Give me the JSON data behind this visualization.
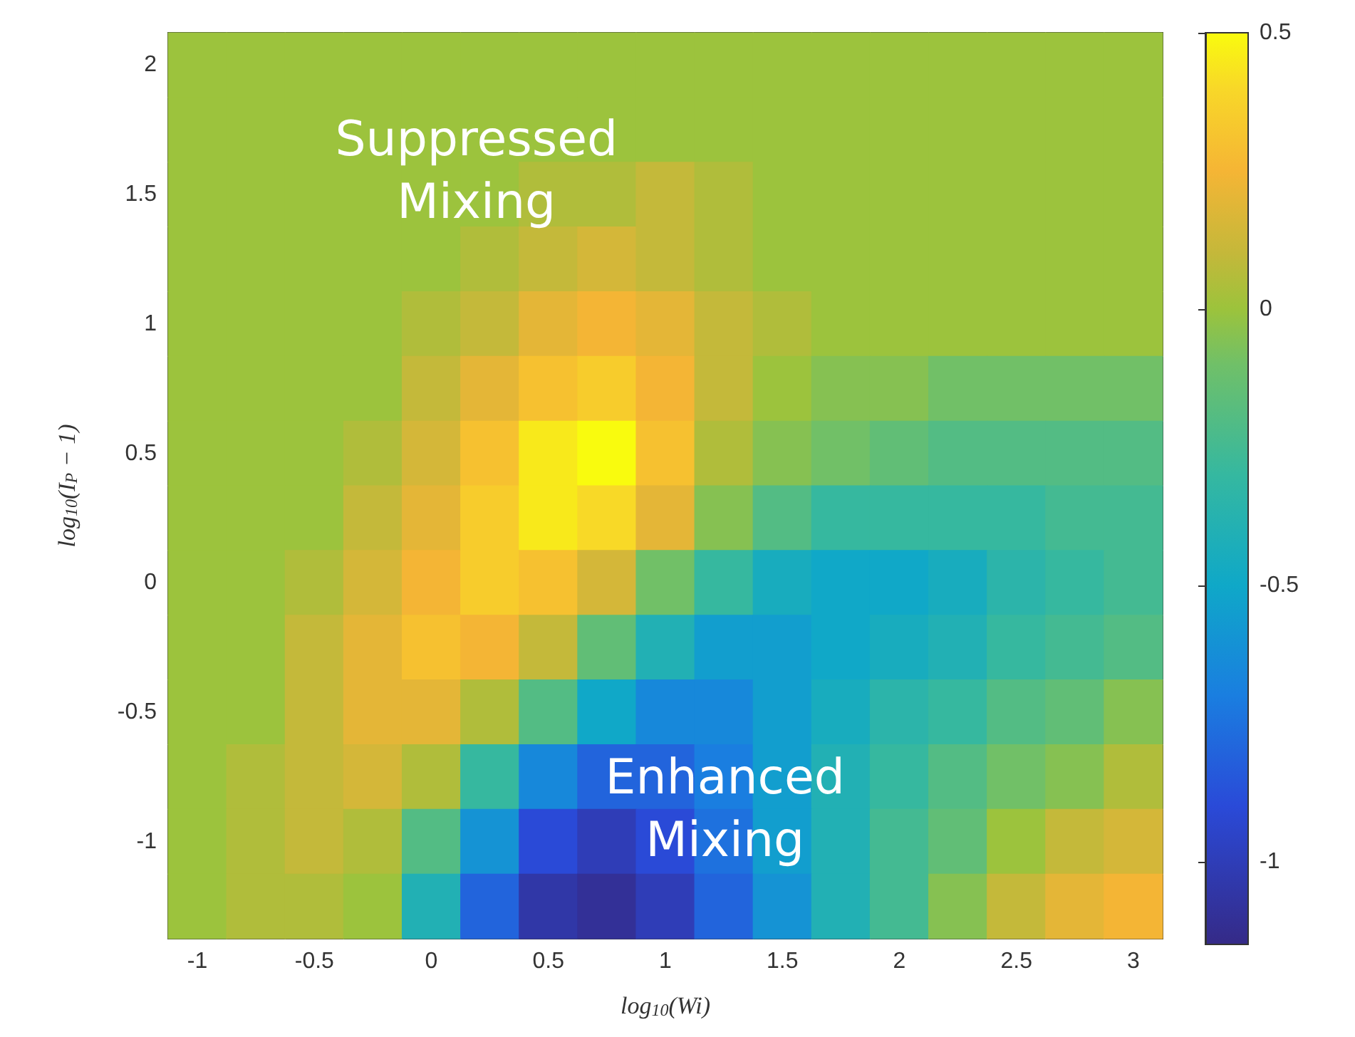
{
  "chart_data": {
    "type": "heatmap",
    "xlabel": "log$_{10}$(Wi)",
    "ylabel": "log$_{10}$(I$_{P}$ − 1)",
    "categories": [
      "-1",
      null,
      "-0.5",
      null,
      "0",
      null,
      "0.5",
      null,
      "1",
      null,
      "1.5",
      null,
      "2",
      null,
      "2.5",
      null,
      "3"
    ],
    "y_categories": [
      "2",
      null,
      "1.5",
      null,
      "1",
      null,
      "0.5",
      null,
      "0",
      null,
      "-0.5",
      null,
      "-1",
      null
    ],
    "cells": [
      [
        0,
        0,
        0,
        0,
        0,
        0,
        0,
        0,
        0,
        0,
        0,
        0,
        0,
        0,
        0,
        0,
        0
      ],
      [
        0,
        0,
        0,
        0,
        0,
        0,
        0,
        0,
        0,
        0,
        0,
        0,
        0,
        0,
        0,
        0,
        0
      ],
      [
        0,
        0,
        0,
        0,
        0,
        0,
        0.05,
        0.05,
        0.1,
        0.05,
        0,
        0,
        0,
        0,
        0,
        0,
        0
      ],
      [
        0,
        0,
        0,
        0,
        0,
        0.05,
        0.1,
        0.15,
        0.1,
        0.05,
        0,
        0,
        0,
        0,
        0,
        0,
        0
      ],
      [
        0,
        0,
        0,
        0,
        0.05,
        0.1,
        0.2,
        0.25,
        0.2,
        0.1,
        0.05,
        0,
        0,
        0,
        0,
        0,
        0
      ],
      [
        0,
        0,
        0,
        0,
        0.1,
        0.2,
        0.3,
        0.35,
        0.25,
        0.1,
        0,
        -0.05,
        -0.05,
        -0.1,
        -0.1,
        -0.1,
        -0.1
      ],
      [
        0,
        0,
        0,
        0.05,
        0.15,
        0.3,
        0.45,
        0.5,
        0.3,
        0.05,
        -0.05,
        -0.1,
        -0.15,
        -0.2,
        -0.2,
        -0.2,
        -0.2
      ],
      [
        0,
        0,
        0,
        0.1,
        0.2,
        0.35,
        0.45,
        0.4,
        0.2,
        -0.05,
        -0.2,
        -0.3,
        -0.3,
        -0.3,
        -0.3,
        -0.25,
        -0.25
      ],
      [
        0,
        0,
        0.05,
        0.15,
        0.25,
        0.35,
        0.3,
        0.15,
        -0.1,
        -0.3,
        -0.45,
        -0.5,
        -0.5,
        -0.45,
        -0.35,
        -0.3,
        -0.25
      ],
      [
        0,
        0,
        0.1,
        0.2,
        0.3,
        0.25,
        0.1,
        -0.15,
        -0.4,
        -0.55,
        -0.55,
        -0.5,
        -0.45,
        -0.4,
        -0.3,
        -0.25,
        -0.2
      ],
      [
        0,
        0,
        0.1,
        0.2,
        0.2,
        0.05,
        -0.2,
        -0.5,
        -0.65,
        -0.65,
        -0.55,
        -0.45,
        -0.35,
        -0.3,
        -0.2,
        -0.15,
        -0.05
      ],
      [
        0,
        0.05,
        0.1,
        0.15,
        0.05,
        -0.3,
        -0.65,
        -0.8,
        -0.8,
        -0.7,
        -0.55,
        -0.4,
        -0.3,
        -0.2,
        -0.1,
        -0.05,
        0.05
      ],
      [
        0,
        0.05,
        0.1,
        0.05,
        -0.2,
        -0.6,
        -0.9,
        -1,
        -0.9,
        -0.75,
        -0.55,
        -0.4,
        -0.25,
        -0.15,
        0,
        0.1,
        0.15
      ],
      [
        0,
        0.05,
        0.05,
        0,
        -0.4,
        -0.8,
        -1.05,
        -1.1,
        -1,
        -0.8,
        -0.6,
        -0.4,
        -0.25,
        -0.05,
        0.1,
        0.2,
        0.25
      ]
    ],
    "clim": [
      -1.15,
      0.5
    ],
    "cticks": [
      -1,
      -0.5,
      0,
      0.5
    ],
    "annotations": [
      "Suppressed Mixing",
      "Enhanced Mixing"
    ]
  }
}
